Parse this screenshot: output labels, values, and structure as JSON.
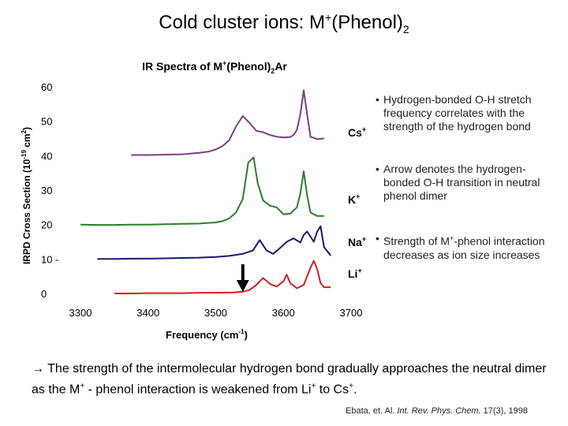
{
  "slide": {
    "title_main": "Cold cluster ions: M",
    "title_sup": "+",
    "title_after": "(Phenol)",
    "title_sub": "2"
  },
  "bullets": [
    {
      "dot": "•",
      "text": "Hydrogen-bonded O-H stretch frequency correlates with the strength of the hydrogen bond"
    },
    {
      "dot": "•",
      "text": "Arrow denotes the hydrogen-bonded O-H transition in neutral phenol dimer"
    },
    {
      "dot": "•",
      "text_a": "Strength of M",
      "text_sup": "+",
      "text_b": "-phenol interaction decreases as ion size increases"
    }
  ],
  "conclusion": {
    "arrow": "→",
    "part1": " The strength of the intermolecular hydrogen bond gradually approaches the neutral dimer as the M",
    "sup1": "+",
    "part2": " - phenol interaction is weakened from Li",
    "sup2": "+",
    "part3": " to Cs",
    "sup3": "+",
    "part4": "."
  },
  "citation": {
    "authors": "Ebata, et. Al. ",
    "journal": "Int. Rev. Phys. Chem.",
    "volume": " 17(3), 1998"
  },
  "chart_data": {
    "type": "line",
    "title": "IR Spectra of M+(Phenol)2Ar",
    "title_parts": {
      "a": "IR Spectra of M",
      "sup": "+",
      "b": "(Phenol)",
      "sub": "2",
      "c": "Ar"
    },
    "xlabel": "Frequency (cm-1)",
    "xlabel_parts": {
      "a": "Frequency (cm",
      "sup": "-1",
      "b": ")"
    },
    "ylabel": "IRPD Cross Section (10-19 cm2)",
    "ylabel_parts": {
      "a": "IRPD Cross Section (10",
      "sup1": "-19",
      "b": " cm",
      "sup2": "2",
      "c": ")"
    },
    "xlim": [
      3300,
      3700
    ],
    "ylim": [
      0,
      60
    ],
    "x_ticks": [
      "3300",
      "3400",
      "3500",
      "3600",
      "3700"
    ],
    "y_ticks": [
      "0",
      "10 -",
      "20",
      "30",
      "40",
      "50",
      "60"
    ],
    "grid": false,
    "arrow_x": 3540,
    "series": [
      {
        "name": "Cs+",
        "name_base": "Cs",
        "name_sup": "+",
        "color": "#7b3f80",
        "x": [
          3375,
          3400,
          3425,
          3450,
          3475,
          3490,
          3500,
          3510,
          3520,
          3530,
          3540,
          3550,
          3560,
          3570,
          3580,
          3590,
          3600,
          3610,
          3615,
          3620,
          3625,
          3630,
          3635,
          3640,
          3650,
          3660
        ],
        "y": [
          40.2,
          40.2,
          40.3,
          40.4,
          40.8,
          41.2,
          41.8,
          42.8,
          44.5,
          48.5,
          51.5,
          49.5,
          47.2,
          46.8,
          46.0,
          45.5,
          45.3,
          45.4,
          46.0,
          47.5,
          52.0,
          59.0,
          52.0,
          45.5,
          44.8,
          45.0
        ]
      },
      {
        "name": "K+",
        "name_base": "K",
        "name_sup": "+",
        "color": "#2b7f2b",
        "x": [
          3300,
          3325,
          3350,
          3375,
          3400,
          3425,
          3450,
          3475,
          3500,
          3510,
          3520,
          3530,
          3540,
          3548,
          3556,
          3562,
          3570,
          3580,
          3590,
          3600,
          3610,
          3620,
          3625,
          3630,
          3635,
          3640,
          3650,
          3660
        ],
        "y": [
          20.0,
          19.9,
          19.9,
          20.0,
          20.0,
          20.1,
          20.2,
          20.3,
          20.6,
          21.0,
          21.8,
          23.5,
          27.5,
          38.0,
          39.5,
          32.0,
          27.0,
          25.5,
          25.0,
          23.0,
          23.2,
          25.0,
          29.0,
          35.5,
          28.5,
          23.5,
          22.5,
          22.5
        ]
      },
      {
        "name": "Na+",
        "name_base": "Na",
        "name_sup": "+",
        "color": "#1a1a6e",
        "x": [
          3325,
          3350,
          3375,
          3400,
          3425,
          3450,
          3475,
          3500,
          3520,
          3540,
          3555,
          3565,
          3575,
          3585,
          3595,
          3605,
          3615,
          3625,
          3630,
          3635,
          3645,
          3650,
          3655,
          3660,
          3670
        ],
        "y": [
          10.0,
          10.0,
          10.1,
          10.1,
          10.2,
          10.3,
          10.4,
          10.6,
          10.9,
          11.5,
          12.5,
          15.5,
          12.5,
          11.5,
          13.2,
          15.0,
          16.0,
          14.8,
          17.0,
          18.0,
          15.0,
          18.0,
          19.5,
          13.5,
          11.0
        ]
      },
      {
        "name": "Li+",
        "name_base": "Li",
        "name_sup": "+",
        "color": "#cc2222",
        "x": [
          3350,
          3375,
          3400,
          3425,
          3450,
          3475,
          3500,
          3525,
          3540,
          3550,
          3560,
          3570,
          3580,
          3590,
          3600,
          3605,
          3610,
          3620,
          3630,
          3640,
          3645,
          3650,
          3655,
          3660,
          3670
        ],
        "y": [
          0.0,
          0.0,
          0.1,
          0.1,
          0.1,
          0.2,
          0.2,
          0.3,
          0.5,
          1.0,
          2.5,
          4.5,
          2.8,
          2.0,
          3.5,
          5.5,
          3.0,
          1.5,
          2.5,
          7.5,
          9.5,
          7.0,
          3.0,
          1.8,
          1.8
        ]
      }
    ]
  }
}
